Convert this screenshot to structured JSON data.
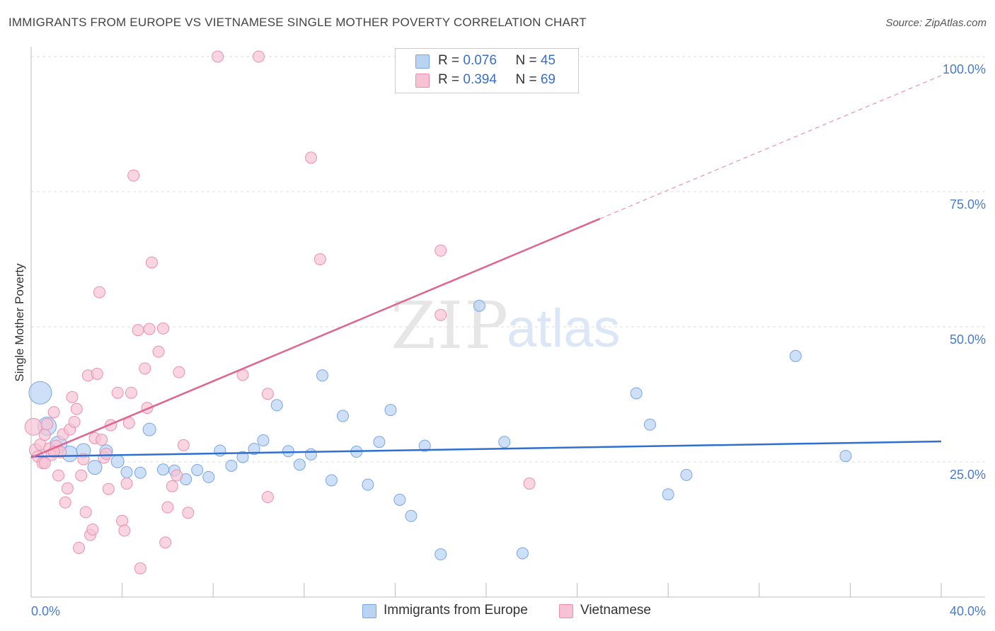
{
  "header": {
    "title": "IMMIGRANTS FROM EUROPE VS VIETNAMESE SINGLE MOTHER POVERTY CORRELATION CHART",
    "source": "Source: ZipAtlas.com"
  },
  "watermark": {
    "zip": "ZIP",
    "atlas": "atlas"
  },
  "legend": {
    "rows": [
      {
        "r_label": "R = ",
        "r_value": "0.076",
        "n_label": "N = ",
        "n_value": "45"
      },
      {
        "r_label": "R = ",
        "r_value": "0.394",
        "n_label": "N = ",
        "n_value": "69"
      }
    ]
  },
  "colors": {
    "blue_fill": "#b9d3f3",
    "blue_stroke": "#7aa6df",
    "blue_line": "#2f6fd0",
    "pink_fill": "#f7c3d4",
    "pink_stroke": "#ea90ae",
    "pink_line": "#e0648f",
    "tick_text": "#4a7cc9",
    "grid": "#dddddd"
  },
  "chart_data": {
    "type": "scatter",
    "title": "IMMIGRANTS FROM EUROPE VS VIETNAMESE SINGLE MOTHER POVERTY CORRELATION CHART",
    "xlabel": "",
    "ylabel": "Single Mother Poverty",
    "xlim": [
      0,
      40
    ],
    "ylim": [
      0,
      100
    ],
    "x_tick_labels": [
      "0.0%",
      "40.0%"
    ],
    "y_tick_labels": [
      "25.0%",
      "50.0%",
      "75.0%",
      "100.0%"
    ],
    "y_ticks": [
      25,
      50,
      75,
      100
    ],
    "grid": true,
    "series": [
      {
        "name": "Immigrants from Europe",
        "color": "#b9d3f3",
        "trend": {
          "x": [
            0,
            40
          ],
          "y": [
            26.0,
            28.8
          ],
          "dashed_from": null
        },
        "points": [
          [
            0.4,
            37.8,
            16
          ],
          [
            0.7,
            31.6,
            13
          ],
          [
            1.2,
            28.2,
            12
          ],
          [
            1.7,
            26.5,
            11
          ],
          [
            2.3,
            27.1,
            10
          ],
          [
            2.8,
            24.0,
            10
          ],
          [
            3.3,
            27.0,
            9
          ],
          [
            3.8,
            25.1,
            9
          ],
          [
            4.2,
            23.1,
            8
          ],
          [
            4.8,
            23.0,
            8
          ],
          [
            5.2,
            31.0,
            9
          ],
          [
            5.8,
            23.6,
            8
          ],
          [
            6.3,
            23.4,
            8
          ],
          [
            6.8,
            21.8,
            8
          ],
          [
            7.3,
            23.5,
            8
          ],
          [
            7.8,
            22.2,
            8
          ],
          [
            8.3,
            27.1,
            8
          ],
          [
            8.8,
            24.3,
            8
          ],
          [
            9.3,
            25.9,
            8
          ],
          [
            9.8,
            27.4,
            8
          ],
          [
            10.2,
            29.0,
            8
          ],
          [
            10.8,
            35.5,
            8
          ],
          [
            11.3,
            27.0,
            8
          ],
          [
            11.8,
            24.5,
            8
          ],
          [
            12.3,
            26.4,
            8
          ],
          [
            12.8,
            41.0,
            8
          ],
          [
            13.2,
            21.6,
            8
          ],
          [
            13.7,
            33.5,
            8
          ],
          [
            14.3,
            26.9,
            8
          ],
          [
            14.8,
            20.8,
            8
          ],
          [
            15.3,
            28.7,
            8
          ],
          [
            15.8,
            34.6,
            8
          ],
          [
            16.2,
            18.0,
            8
          ],
          [
            16.7,
            15.0,
            8
          ],
          [
            17.3,
            28.0,
            8
          ],
          [
            18.0,
            7.9,
            8
          ],
          [
            19.7,
            53.9,
            8
          ],
          [
            20.8,
            28.7,
            8
          ],
          [
            21.6,
            8.1,
            8
          ],
          [
            26.6,
            37.7,
            8
          ],
          [
            27.2,
            31.9,
            8
          ],
          [
            28.0,
            19.0,
            8
          ],
          [
            28.8,
            22.6,
            8
          ],
          [
            33.6,
            44.6,
            8
          ],
          [
            35.8,
            26.1,
            8
          ]
        ]
      },
      {
        "name": "Vietnamese",
        "color": "#f7c3d4",
        "trend": {
          "x": [
            0,
            25,
            40
          ],
          "y": [
            25.8,
            70.0,
            96.5
          ],
          "dashed_from": 25
        },
        "points": [
          [
            0.1,
            31.5,
            12
          ],
          [
            0.2,
            27.2,
            9
          ],
          [
            0.3,
            26.0,
            8
          ],
          [
            0.4,
            28.2,
            8
          ],
          [
            0.5,
            24.8,
            8
          ],
          [
            0.6,
            30.0,
            8
          ],
          [
            0.7,
            32.0,
            8
          ],
          [
            0.8,
            27.5,
            8
          ],
          [
            0.9,
            26.3,
            8
          ],
          [
            1.0,
            34.2,
            8
          ],
          [
            1.1,
            28.0,
            8
          ],
          [
            1.2,
            22.5,
            8
          ],
          [
            1.3,
            26.8,
            8
          ],
          [
            1.4,
            30.1,
            8
          ],
          [
            1.5,
            17.5,
            8
          ],
          [
            1.6,
            20.1,
            8
          ],
          [
            1.7,
            31.0,
            8
          ],
          [
            1.8,
            37.0,
            8
          ],
          [
            1.9,
            32.4,
            8
          ],
          [
            2.0,
            34.8,
            8
          ],
          [
            2.1,
            9.1,
            8
          ],
          [
            2.2,
            22.5,
            8
          ],
          [
            2.3,
            25.5,
            8
          ],
          [
            2.4,
            15.7,
            8
          ],
          [
            2.5,
            41.0,
            8
          ],
          [
            2.6,
            11.5,
            8
          ],
          [
            2.7,
            12.5,
            8
          ],
          [
            2.8,
            29.4,
            8
          ],
          [
            2.9,
            41.3,
            8
          ],
          [
            3.0,
            56.4,
            8
          ],
          [
            3.1,
            29.1,
            8
          ],
          [
            3.2,
            25.8,
            8
          ],
          [
            3.3,
            26.5,
            8
          ],
          [
            3.4,
            20.0,
            8
          ],
          [
            3.5,
            31.8,
            8
          ],
          [
            3.8,
            37.8,
            8
          ],
          [
            4.0,
            14.1,
            8
          ],
          [
            4.1,
            12.3,
            8
          ],
          [
            4.2,
            21.0,
            8
          ],
          [
            4.3,
            32.2,
            8
          ],
          [
            4.4,
            37.8,
            8
          ],
          [
            4.5,
            78.0,
            8
          ],
          [
            4.7,
            49.4,
            8
          ],
          [
            4.8,
            5.3,
            8
          ],
          [
            5.0,
            42.3,
            8
          ],
          [
            5.1,
            35.0,
            8
          ],
          [
            5.2,
            49.6,
            8
          ],
          [
            5.3,
            61.9,
            8
          ],
          [
            5.6,
            45.4,
            8
          ],
          [
            5.8,
            49.7,
            8
          ],
          [
            5.9,
            10.1,
            8
          ],
          [
            6.0,
            16.6,
            8
          ],
          [
            6.2,
            20.5,
            8
          ],
          [
            6.4,
            22.5,
            8
          ],
          [
            6.5,
            41.6,
            8
          ],
          [
            6.7,
            28.1,
            8
          ],
          [
            6.9,
            15.6,
            8
          ],
          [
            8.2,
            100.0,
            8
          ],
          [
            9.3,
            41.1,
            8
          ],
          [
            10.0,
            100.0,
            8
          ],
          [
            10.4,
            37.6,
            8
          ],
          [
            10.4,
            18.5,
            8
          ],
          [
            12.3,
            81.3,
            8
          ],
          [
            12.7,
            62.5,
            8
          ],
          [
            18.0,
            64.1,
            8
          ],
          [
            18.0,
            52.2,
            8
          ],
          [
            21.9,
            21.0,
            8
          ],
          [
            0.6,
            24.8,
            8
          ],
          [
            1.0,
            26.9,
            8
          ]
        ]
      }
    ]
  },
  "bottom_legend": [
    {
      "label": "Immigrants from Europe"
    },
    {
      "label": "Vietnamese"
    }
  ]
}
